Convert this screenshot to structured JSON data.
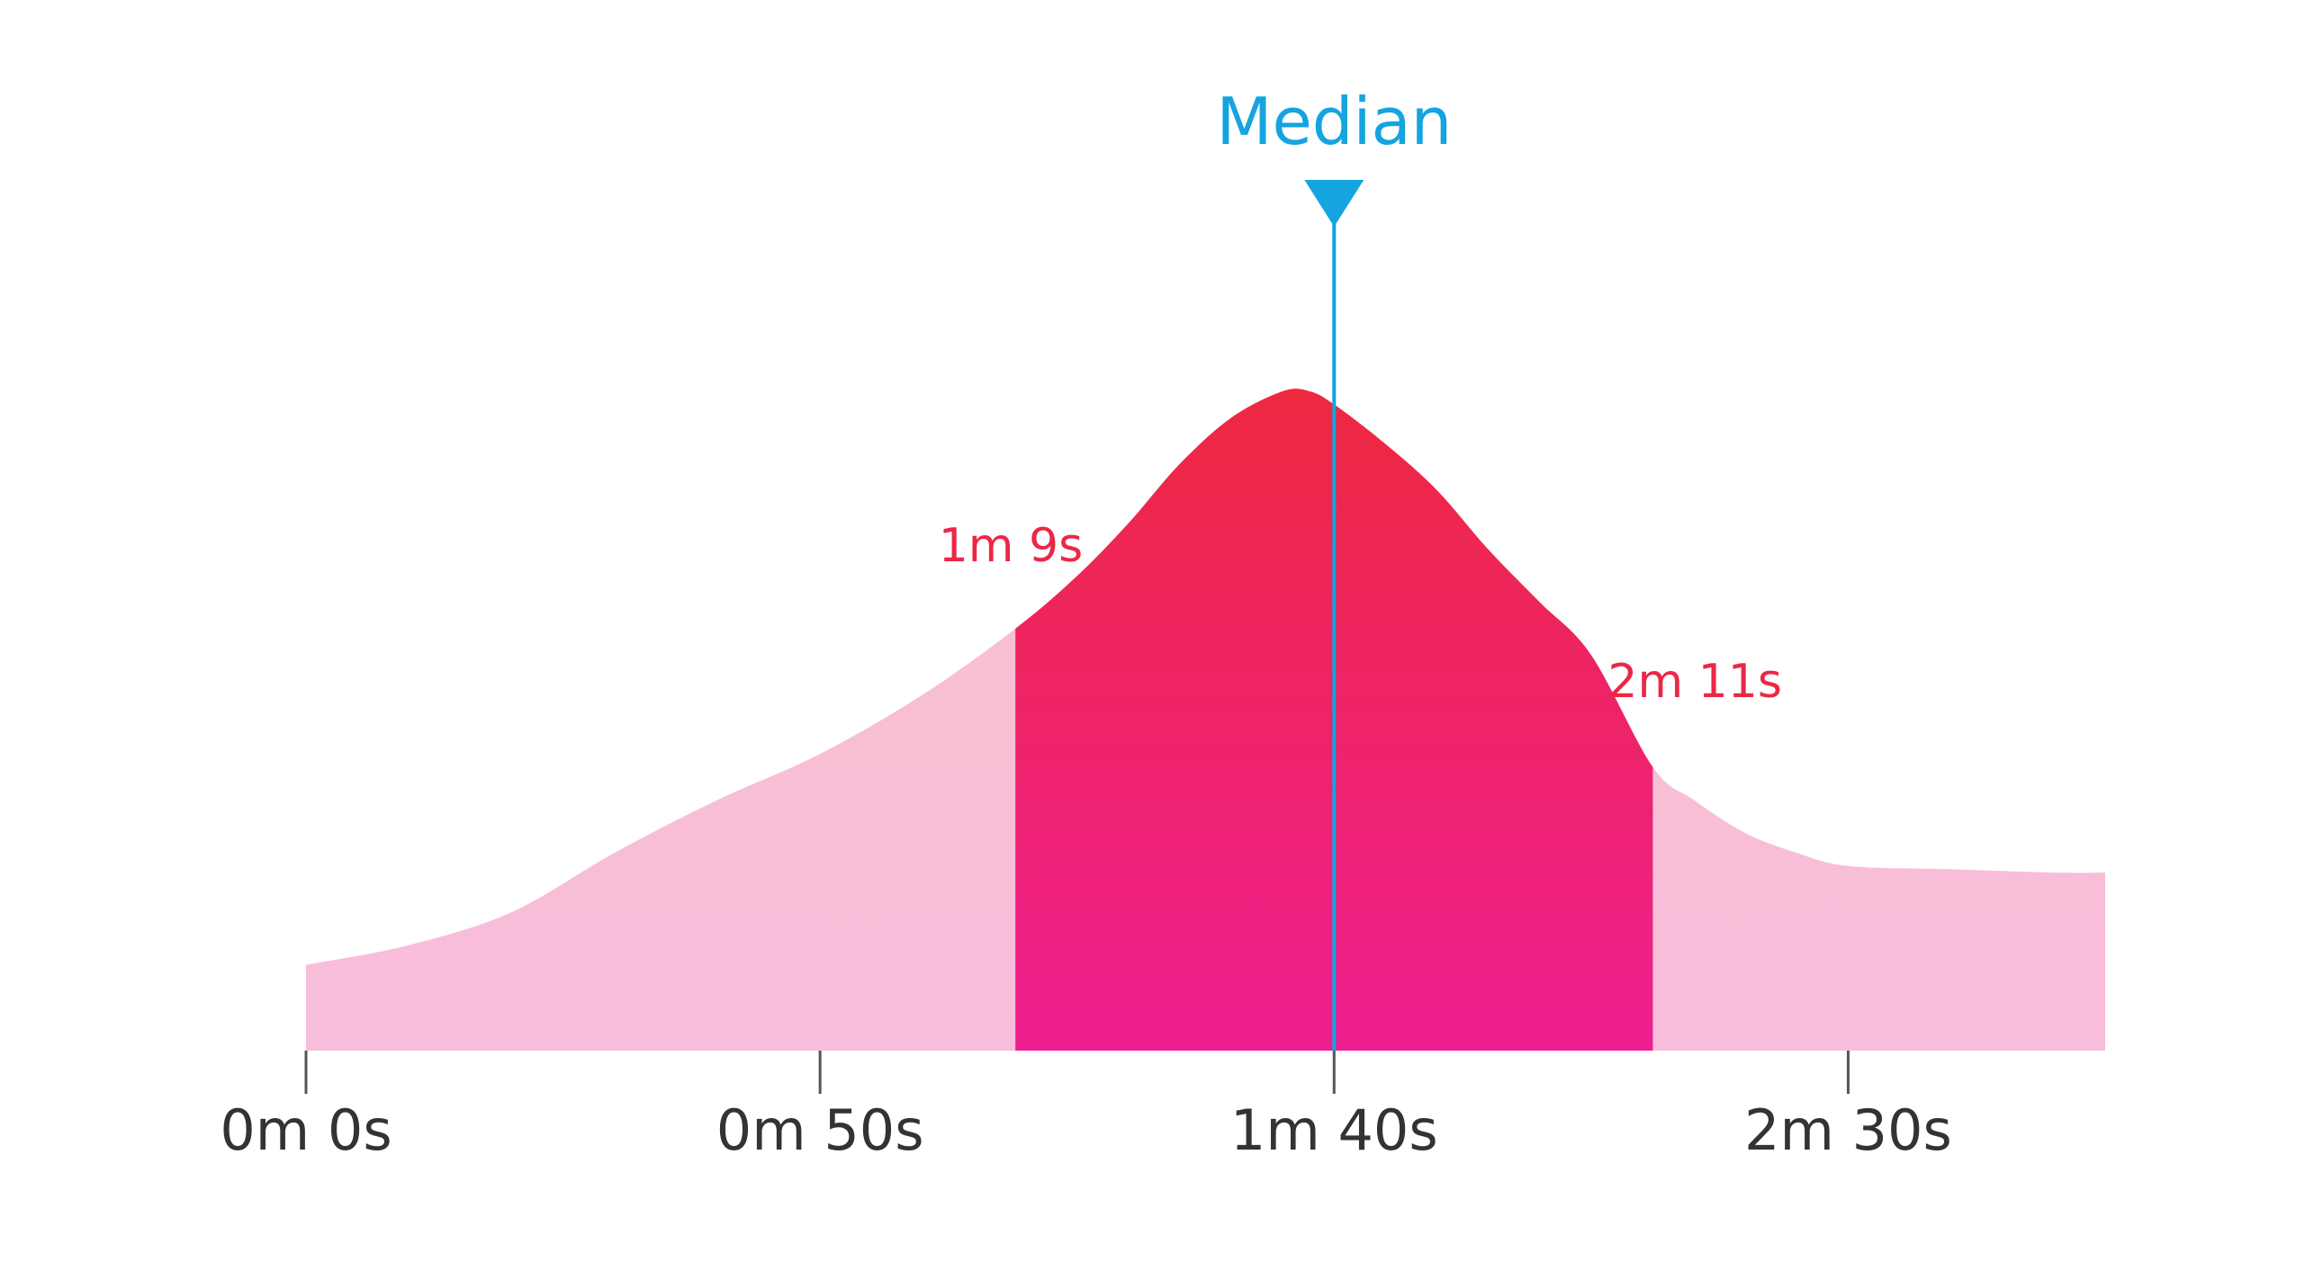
{
  "chart_data": {
    "type": "area",
    "title": "",
    "xlabel": "",
    "ylabel": "",
    "x_unit": "seconds",
    "xlim": [
      0,
      175
    ],
    "ylim": [
      0,
      1
    ],
    "grid": false,
    "x_ticks": [
      {
        "value": 0,
        "label": "0m 0s"
      },
      {
        "value": 50,
        "label": "0m 50s"
      },
      {
        "value": 100,
        "label": "1m 40s"
      },
      {
        "value": 150,
        "label": "2m 30s"
      }
    ],
    "x": [
      0,
      10,
      20,
      30,
      40,
      50,
      60,
      69,
      75,
      80,
      85,
      90,
      95,
      97.6,
      100,
      105,
      110,
      115,
      120,
      125,
      131,
      135,
      140,
      145,
      150,
      160,
      170,
      175
    ],
    "y": [
      0.13,
      0.16,
      0.21,
      0.3,
      0.38,
      0.45,
      0.54,
      0.64,
      0.72,
      0.8,
      0.89,
      0.96,
      1.0,
      1.0,
      0.98,
      0.92,
      0.85,
      0.76,
      0.68,
      0.6,
      0.43,
      0.38,
      0.33,
      0.3,
      0.28,
      0.275,
      0.27,
      0.27
    ],
    "highlight_range": {
      "start": 69,
      "end": 131,
      "start_label": "1m 9s",
      "end_label": "2m 11s"
    },
    "median": {
      "value": 100,
      "label": "Median"
    },
    "colors": {
      "outer_fill_top": "#f8bfcc",
      "outer_fill_bottom": "#f8bddb",
      "inner_fill_top": "#ee2840",
      "inner_fill_bottom": "#ee1e90",
      "median_line": "#14a4e0",
      "range_label": "#ec2746",
      "tick": "#555555",
      "tick_label": "#333333"
    }
  }
}
